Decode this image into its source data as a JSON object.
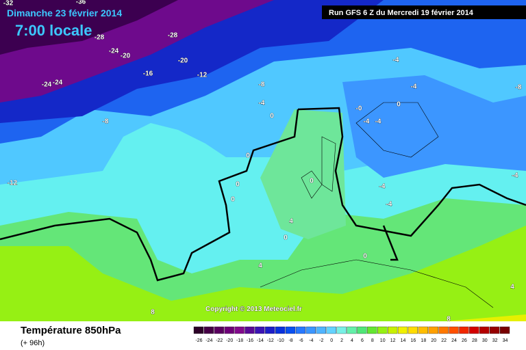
{
  "header": {
    "date": "Dimanche 23 février 2014",
    "time": "7:00 locale",
    "run": "Run GFS 6 Z du Mercredi 19 février 2014"
  },
  "footer": {
    "title": "Température 850hPa",
    "lead": "(+ 96h)",
    "copyright": "Copyright © 2013 Meteociel.fr"
  },
  "legend": {
    "labels": [
      -26,
      -24,
      -22,
      -20,
      -18,
      -16,
      -14,
      -12,
      -10,
      -8,
      -6,
      -4,
      -2,
      0,
      2,
      4,
      6,
      8,
      10,
      12,
      14,
      16,
      18,
      20,
      22,
      24,
      26,
      28,
      30,
      32,
      34
    ],
    "colors": [
      "#2d0028",
      "#460046",
      "#5a005f",
      "#6e0078",
      "#820a8c",
      "#5a0a96",
      "#3c14b4",
      "#1e1ec8",
      "#0a32dc",
      "#0a50f0",
      "#2878ff",
      "#3c96ff",
      "#50b4ff",
      "#64d2ff",
      "#78f0e6",
      "#64f0aa",
      "#50e678",
      "#64e632",
      "#96f014",
      "#c8f000",
      "#f0f000",
      "#ffdc00",
      "#ffbe00",
      "#ffa000",
      "#ff7800",
      "#ff5000",
      "#f02800",
      "#d20000",
      "#b40000",
      "#960000",
      "#780000"
    ]
  },
  "contour_labels": [
    "-32",
    "-36",
    "-28",
    "-28",
    "-24",
    "-20",
    "-20",
    "-16",
    "-12",
    "-24",
    "-24",
    "-8",
    "-4",
    "-8",
    "-12",
    "0",
    "-4",
    "-4",
    "-8",
    "-0",
    "0",
    "-4",
    "-4",
    "0",
    "0",
    "0",
    "0",
    "-4",
    "-4",
    "-4",
    "4",
    "0",
    "0",
    "4",
    "8",
    "8",
    "4"
  ]
}
